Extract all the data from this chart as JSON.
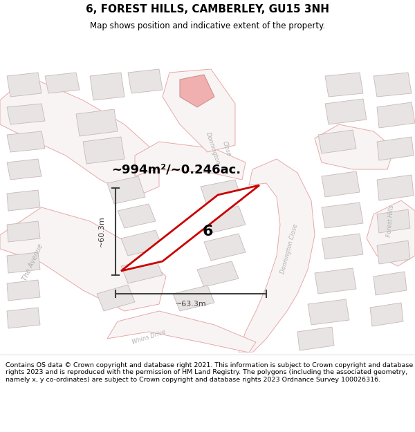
{
  "title": "6, FOREST HILLS, CAMBERLEY, GU15 3NH",
  "subtitle": "Map shows position and indicative extent of the property.",
  "area_text": "~994m²/~0.246ac.",
  "width_label": "~63.3m",
  "height_label": "~60.3m",
  "property_number": "6",
  "footer": "Contains OS data © Crown copyright and database right 2021. This information is subject to Crown copyright and database rights 2023 and is reproduced with the permission of HM Land Registry. The polygons (including the associated geometry, namely x, y co-ordinates) are subject to Crown copyright and database rights 2023 Ordnance Survey 100026316.",
  "bg_color": "#ffffff",
  "road_outline": "#e8a8a8",
  "road_fill": "#ffffff",
  "building_fill": "#e8e4e4",
  "building_outline": "#c8b8b8",
  "block_outline": "#d0b8b8",
  "property_color": "#cc0000",
  "property_fill": "#ffffff",
  "dimension_color": "#404040",
  "title_color": "#000000",
  "label_color": "#aaaaaa",
  "pink_feature": "#e8b0b0",
  "figsize": [
    6.0,
    6.25
  ],
  "dpi": 100
}
